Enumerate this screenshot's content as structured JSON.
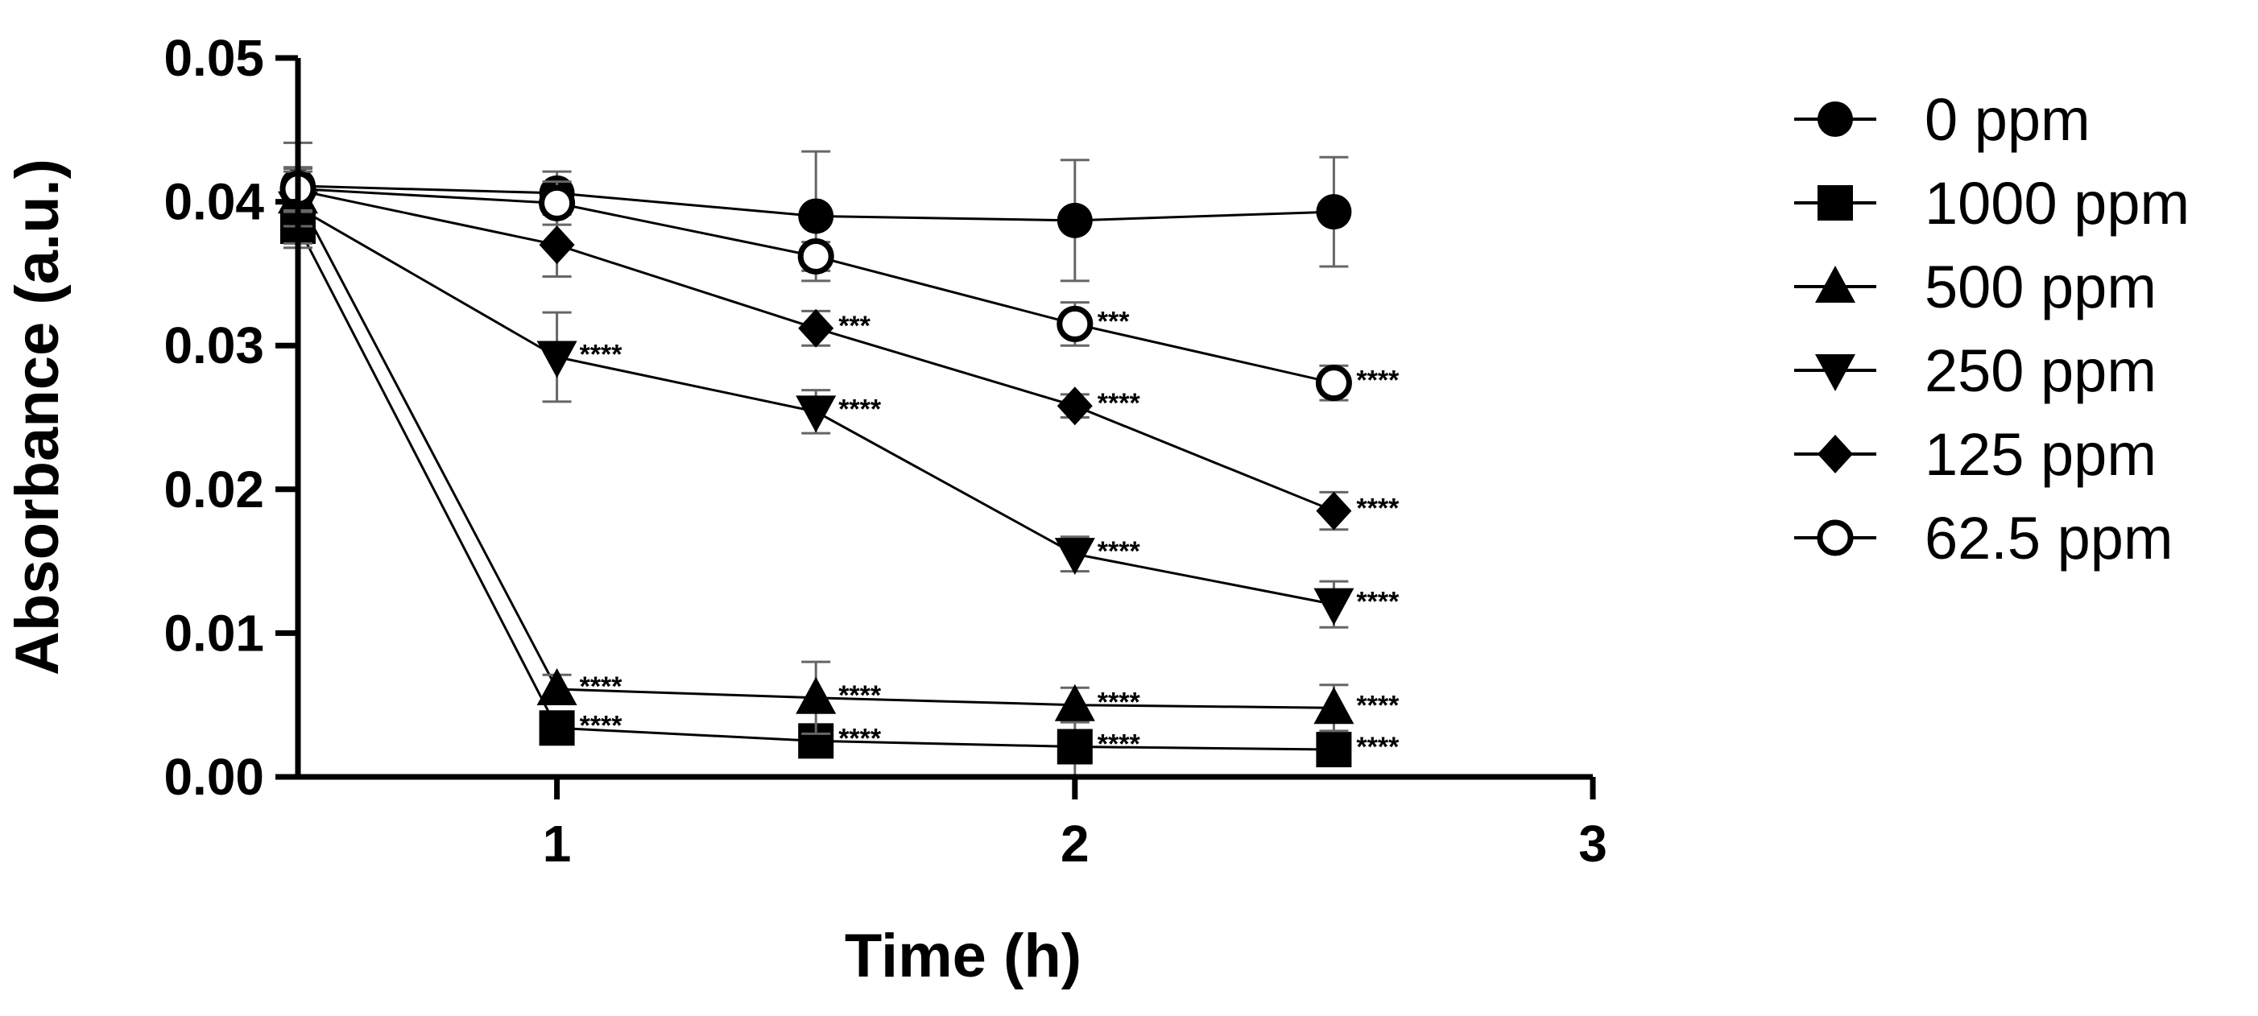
{
  "chart_data": {
    "type": "line",
    "xlabel": "Time (h)",
    "ylabel": "Absorbance (a.u.)",
    "xlim": [
      0.5,
      3
    ],
    "ylim": [
      0,
      0.05
    ],
    "x_ticks": [
      1,
      2,
      3
    ],
    "x_tick_labels": [
      "1",
      "2",
      "3"
    ],
    "y_ticks": [
      0,
      0.01,
      0.02,
      0.03,
      0.04,
      0.05
    ],
    "y_tick_labels": [
      "0.00",
      "0.01",
      "0.02",
      "0.03",
      "0.04",
      "0.05"
    ],
    "grid": false,
    "legend_position": "right",
    "x": [
      0.5,
      1,
      1.5,
      2,
      2.5
    ],
    "series": [
      {
        "name": "0 ppm",
        "marker": "circle",
        "values": [
          0.0411,
          0.0406,
          0.039,
          0.0387,
          0.0393
        ],
        "errors": [
          0.003,
          0.0015,
          0.0045,
          0.0042,
          0.0038
        ],
        "significance": [
          "",
          "",
          "",
          "",
          ""
        ]
      },
      {
        "name": "1000 ppm",
        "marker": "square",
        "values": [
          0.0383,
          0.0034,
          0.0025,
          0.0021,
          0.0019
        ],
        "errors": [
          0.0015,
          0.0006,
          0.0005,
          0.0022,
          0.001
        ],
        "significance": [
          "",
          "****",
          "****",
          "****",
          "****"
        ]
      },
      {
        "name": "500 ppm",
        "marker": "triangle-up",
        "values": [
          0.0403,
          0.0061,
          0.0055,
          0.005,
          0.0048
        ],
        "errors": [
          0.002,
          0.001,
          0.0025,
          0.0012,
          0.0016
        ],
        "significance": [
          "",
          "****",
          "****",
          "****",
          "****"
        ]
      },
      {
        "name": "250 ppm",
        "marker": "triangle-down",
        "values": [
          0.0396,
          0.0292,
          0.0254,
          0.0155,
          0.012
        ],
        "errors": [
          0.0025,
          0.0031,
          0.0015,
          0.0012,
          0.0016
        ],
        "significance": [
          "",
          "****",
          "****",
          "****",
          "****"
        ]
      },
      {
        "name": "125 ppm",
        "marker": "diamond",
        "values": [
          0.0408,
          0.037,
          0.0312,
          0.0258,
          0.0185
        ],
        "errors": [
          0.0015,
          0.0022,
          0.0012,
          0.0008,
          0.0013
        ],
        "significance": [
          "",
          "",
          "***",
          "****",
          "****"
        ]
      },
      {
        "name": "62.5 ppm",
        "marker": "circle-open",
        "values": [
          0.0409,
          0.0399,
          0.0362,
          0.0315,
          0.0274
        ],
        "errors": [
          0.0015,
          0.0015,
          0.001,
          0.0015,
          0.0012
        ],
        "significance": [
          "",
          "",
          "",
          "***",
          "****"
        ]
      }
    ]
  }
}
